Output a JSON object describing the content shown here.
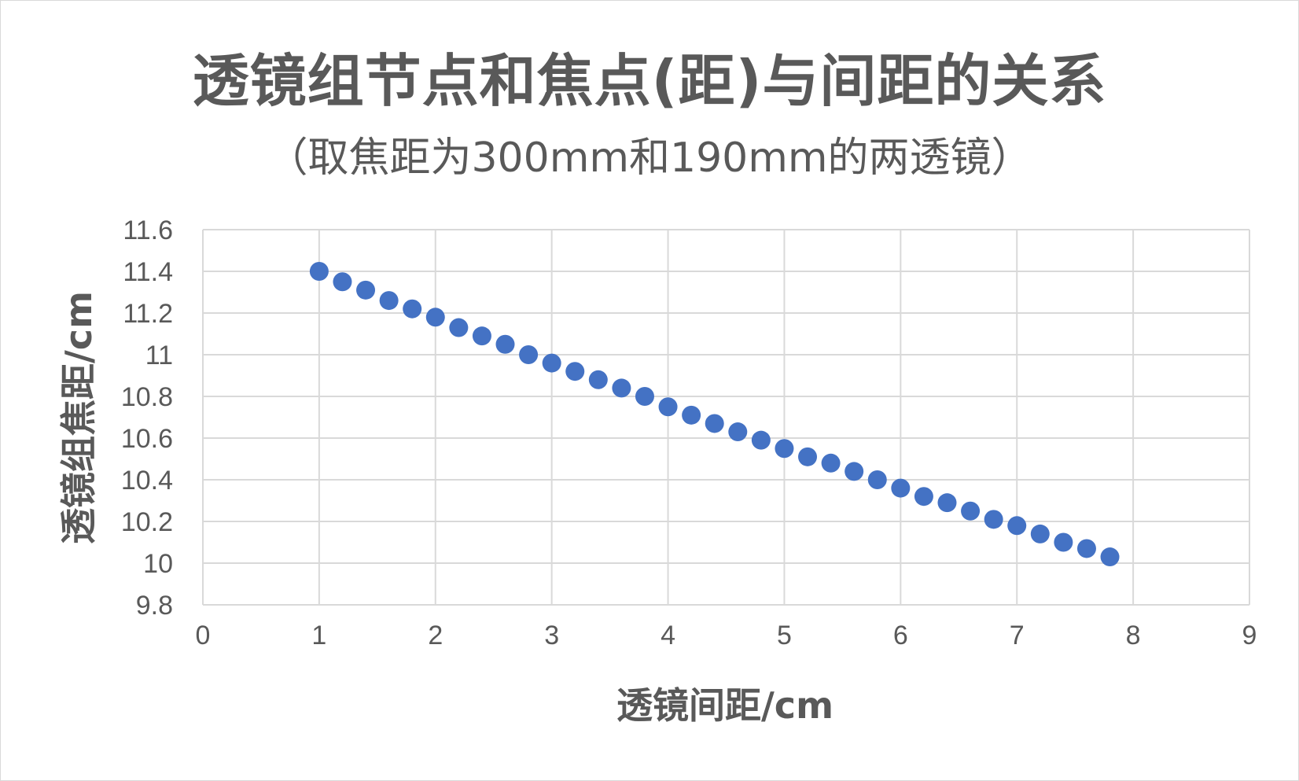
{
  "chart_data": {
    "type": "scatter",
    "title": "透镜组节点和焦点(距)与间距的关系",
    "subtitle": "（取焦距为300mm和190mm的两透镜）",
    "xlabel": "透镜间距/cm",
    "ylabel": "透镜组焦距/cm",
    "xlim": [
      0,
      9
    ],
    "ylim": [
      9.8,
      11.6
    ],
    "x_ticks": [
      "0",
      "1",
      "2",
      "3",
      "4",
      "5",
      "6",
      "7",
      "8",
      "9"
    ],
    "y_ticks": [
      "9.8",
      "10",
      "10.2",
      "10.4",
      "10.6",
      "10.8",
      "11",
      "11.2",
      "11.4",
      "11.6"
    ],
    "grid": true,
    "legend": "none",
    "marker_color": "#4472C4",
    "series": [
      {
        "x": [
          1.0,
          1.2,
          1.4,
          1.6,
          1.8,
          2.0,
          2.2,
          2.4,
          2.6,
          2.8,
          3.0,
          3.2,
          3.4,
          3.6,
          3.8,
          4.0,
          4.2,
          4.4,
          4.6,
          4.8,
          5.0,
          5.2,
          5.4,
          5.6,
          5.8,
          6.0,
          6.2,
          6.4,
          6.6,
          6.8,
          7.0,
          7.2,
          7.4,
          7.6,
          7.8
        ],
        "y": [
          11.4,
          11.35,
          11.31,
          11.26,
          11.22,
          11.18,
          11.13,
          11.09,
          11.05,
          11.0,
          10.96,
          10.92,
          10.88,
          10.84,
          10.8,
          10.75,
          10.71,
          10.67,
          10.63,
          10.59,
          10.55,
          10.51,
          10.48,
          10.44,
          10.4,
          10.36,
          10.32,
          10.29,
          10.25,
          10.21,
          10.18,
          10.14,
          10.1,
          10.07,
          10.03
        ]
      }
    ]
  }
}
